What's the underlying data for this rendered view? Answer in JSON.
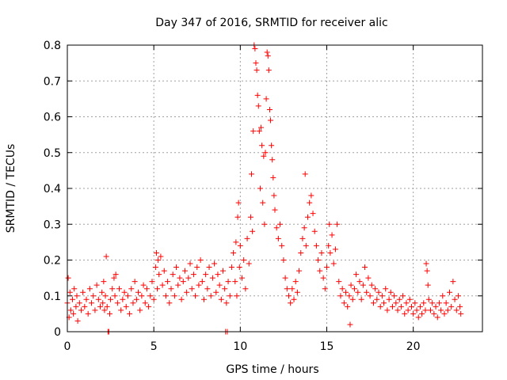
{
  "chart_data": {
    "type": "scatter",
    "title": "Day 347 of 2016, SRMTID for receiver alic",
    "xlabel": "GPS time / hours",
    "ylabel": "SRMTID / TECUs",
    "xlim": [
      0,
      24
    ],
    "ylim": [
      0,
      0.8
    ],
    "xticks": [
      "0",
      "5",
      "10",
      "15",
      "20"
    ],
    "yticks": [
      "0",
      "0.1",
      "0.2",
      "0.3",
      "0.4",
      "0.5",
      "0.6",
      "0.7",
      "0.8"
    ],
    "grid": true,
    "marker": "+",
    "color": "#ff0000",
    "series": [
      {
        "name": "SRMTID",
        "points": [
          [
            0.0,
            0.08
          ],
          [
            0.05,
            0.15
          ],
          [
            0.1,
            0.04
          ],
          [
            0.15,
            0.11
          ],
          [
            0.2,
            0.06
          ],
          [
            0.3,
            0.09
          ],
          [
            0.35,
            0.05
          ],
          [
            0.4,
            0.12
          ],
          [
            0.5,
            0.07
          ],
          [
            0.55,
            0.1
          ],
          [
            0.6,
            0.03
          ],
          [
            0.7,
            0.08
          ],
          [
            0.8,
            0.06
          ],
          [
            0.9,
            0.11
          ],
          [
            1.0,
            0.07
          ],
          [
            1.1,
            0.09
          ],
          [
            1.2,
            0.05
          ],
          [
            1.3,
            0.12
          ],
          [
            1.4,
            0.08
          ],
          [
            1.5,
            0.1
          ],
          [
            1.6,
            0.06
          ],
          [
            1.7,
            0.13
          ],
          [
            1.8,
            0.09
          ],
          [
            1.9,
            0.07
          ],
          [
            2.0,
            0.11
          ],
          [
            2.05,
            0.08
          ],
          [
            2.1,
            0.14
          ],
          [
            2.15,
            0.06
          ],
          [
            2.2,
            0.1
          ],
          [
            2.25,
            0.21
          ],
          [
            2.3,
            0.07
          ],
          [
            2.35,
            0.0
          ],
          [
            2.4,
            0.0
          ],
          [
            2.45,
            0.05
          ],
          [
            2.5,
            0.09
          ],
          [
            2.6,
            0.12
          ],
          [
            2.7,
            0.15
          ],
          [
            2.75,
            0.1
          ],
          [
            2.8,
            0.16
          ],
          [
            2.9,
            0.08
          ],
          [
            3.0,
            0.12
          ],
          [
            3.1,
            0.06
          ],
          [
            3.2,
            0.09
          ],
          [
            3.3,
            0.11
          ],
          [
            3.4,
            0.07
          ],
          [
            3.5,
            0.1
          ],
          [
            3.6,
            0.05
          ],
          [
            3.7,
            0.12
          ],
          [
            3.8,
            0.08
          ],
          [
            3.9,
            0.14
          ],
          [
            4.0,
            0.09
          ],
          [
            4.1,
            0.11
          ],
          [
            4.2,
            0.06
          ],
          [
            4.3,
            0.1
          ],
          [
            4.4,
            0.13
          ],
          [
            4.5,
            0.08
          ],
          [
            4.6,
            0.12
          ],
          [
            4.7,
            0.07
          ],
          [
            4.8,
            0.1
          ],
          [
            4.9,
            0.14
          ],
          [
            5.0,
            0.09
          ],
          [
            5.1,
            0.18
          ],
          [
            5.15,
            0.22
          ],
          [
            5.2,
            0.12
          ],
          [
            5.25,
            0.2
          ],
          [
            5.3,
            0.16
          ],
          [
            5.4,
            0.21
          ],
          [
            5.5,
            0.13
          ],
          [
            5.6,
            0.17
          ],
          [
            5.7,
            0.1
          ],
          [
            5.8,
            0.14
          ],
          [
            5.9,
            0.08
          ],
          [
            6.0,
            0.12
          ],
          [
            6.1,
            0.16
          ],
          [
            6.2,
            0.1
          ],
          [
            6.3,
            0.18
          ],
          [
            6.4,
            0.13
          ],
          [
            6.5,
            0.15
          ],
          [
            6.6,
            0.09
          ],
          [
            6.7,
            0.14
          ],
          [
            6.8,
            0.17
          ],
          [
            6.9,
            0.11
          ],
          [
            7.0,
            0.15
          ],
          [
            7.1,
            0.19
          ],
          [
            7.2,
            0.12
          ],
          [
            7.3,
            0.16
          ],
          [
            7.4,
            0.1
          ],
          [
            7.5,
            0.18
          ],
          [
            7.6,
            0.13
          ],
          [
            7.7,
            0.2
          ],
          [
            7.8,
            0.14
          ],
          [
            7.9,
            0.09
          ],
          [
            8.0,
            0.16
          ],
          [
            8.1,
            0.12
          ],
          [
            8.2,
            0.18
          ],
          [
            8.3,
            0.1
          ],
          [
            8.4,
            0.15
          ],
          [
            8.5,
            0.19
          ],
          [
            8.6,
            0.11
          ],
          [
            8.7,
            0.16
          ],
          [
            8.8,
            0.13
          ],
          [
            8.9,
            0.09
          ],
          [
            9.0,
            0.17
          ],
          [
            9.1,
            0.12
          ],
          [
            9.15,
            0.0
          ],
          [
            9.2,
            0.08
          ],
          [
            9.25,
            0.0
          ],
          [
            9.3,
            0.14
          ],
          [
            9.4,
            0.1
          ],
          [
            9.5,
            0.18
          ],
          [
            9.6,
            0.22
          ],
          [
            9.7,
            0.14
          ],
          [
            9.75,
            0.25
          ],
          [
            9.8,
            0.1
          ],
          [
            9.85,
            0.32
          ],
          [
            9.9,
            0.36
          ],
          [
            9.95,
            0.18
          ],
          [
            10.0,
            0.24
          ],
          [
            10.1,
            0.15
          ],
          [
            10.2,
            0.2
          ],
          [
            10.3,
            0.12
          ],
          [
            10.4,
            0.26
          ],
          [
            10.5,
            0.19
          ],
          [
            10.6,
            0.32
          ],
          [
            10.65,
            0.44
          ],
          [
            10.7,
            0.28
          ],
          [
            10.75,
            0.56
          ],
          [
            10.8,
            0.8
          ],
          [
            10.85,
            0.79
          ],
          [
            10.9,
            0.75
          ],
          [
            10.95,
            0.73
          ],
          [
            11.0,
            0.66
          ],
          [
            11.05,
            0.63
          ],
          [
            11.1,
            0.56
          ],
          [
            11.15,
            0.4
          ],
          [
            11.2,
            0.57
          ],
          [
            11.25,
            0.52
          ],
          [
            11.3,
            0.36
          ],
          [
            11.35,
            0.49
          ],
          [
            11.4,
            0.3
          ],
          [
            11.45,
            0.5
          ],
          [
            11.5,
            0.65
          ],
          [
            11.55,
            0.78
          ],
          [
            11.6,
            0.77
          ],
          [
            11.65,
            0.73
          ],
          [
            11.7,
            0.62
          ],
          [
            11.75,
            0.59
          ],
          [
            11.8,
            0.52
          ],
          [
            11.85,
            0.48
          ],
          [
            11.9,
            0.43
          ],
          [
            11.95,
            0.38
          ],
          [
            12.0,
            0.34
          ],
          [
            12.1,
            0.29
          ],
          [
            12.2,
            0.26
          ],
          [
            12.3,
            0.3
          ],
          [
            12.4,
            0.24
          ],
          [
            12.5,
            0.2
          ],
          [
            12.6,
            0.15
          ],
          [
            12.7,
            0.12
          ],
          [
            12.8,
            0.1
          ],
          [
            12.9,
            0.08
          ],
          [
            13.0,
            0.12
          ],
          [
            13.1,
            0.09
          ],
          [
            13.2,
            0.14
          ],
          [
            13.3,
            0.11
          ],
          [
            13.4,
            0.17
          ],
          [
            13.5,
            0.22
          ],
          [
            13.6,
            0.26
          ],
          [
            13.7,
            0.29
          ],
          [
            13.75,
            0.44
          ],
          [
            13.8,
            0.24
          ],
          [
            13.9,
            0.32
          ],
          [
            14.0,
            0.36
          ],
          [
            14.1,
            0.38
          ],
          [
            14.2,
            0.33
          ],
          [
            14.3,
            0.28
          ],
          [
            14.4,
            0.24
          ],
          [
            14.5,
            0.2
          ],
          [
            14.6,
            0.17
          ],
          [
            14.7,
            0.22
          ],
          [
            14.8,
            0.15
          ],
          [
            14.9,
            0.12
          ],
          [
            15.0,
            0.18
          ],
          [
            15.1,
            0.24
          ],
          [
            15.15,
            0.3
          ],
          [
            15.2,
            0.22
          ],
          [
            15.3,
            0.27
          ],
          [
            15.4,
            0.19
          ],
          [
            15.5,
            0.23
          ],
          [
            15.6,
            0.3
          ],
          [
            15.7,
            0.14
          ],
          [
            15.8,
            0.1
          ],
          [
            15.9,
            0.12
          ],
          [
            16.0,
            0.08
          ],
          [
            16.1,
            0.11
          ],
          [
            16.2,
            0.07
          ],
          [
            16.3,
            0.1
          ],
          [
            16.35,
            0.02
          ],
          [
            16.4,
            0.13
          ],
          [
            16.5,
            0.09
          ],
          [
            16.6,
            0.12
          ],
          [
            16.7,
            0.16
          ],
          [
            16.8,
            0.11
          ],
          [
            16.9,
            0.14
          ],
          [
            17.0,
            0.09
          ],
          [
            17.1,
            0.13
          ],
          [
            17.2,
            0.18
          ],
          [
            17.3,
            0.11
          ],
          [
            17.4,
            0.15
          ],
          [
            17.5,
            0.1
          ],
          [
            17.6,
            0.13
          ],
          [
            17.7,
            0.08
          ],
          [
            17.8,
            0.12
          ],
          [
            17.9,
            0.09
          ],
          [
            18.0,
            0.11
          ],
          [
            18.1,
            0.07
          ],
          [
            18.2,
            0.1
          ],
          [
            18.3,
            0.08
          ],
          [
            18.4,
            0.12
          ],
          [
            18.5,
            0.06
          ],
          [
            18.6,
            0.09
          ],
          [
            18.7,
            0.11
          ],
          [
            18.8,
            0.07
          ],
          [
            18.9,
            0.1
          ],
          [
            19.0,
            0.08
          ],
          [
            19.1,
            0.06
          ],
          [
            19.2,
            0.09
          ],
          [
            19.3,
            0.07
          ],
          [
            19.4,
            0.1
          ],
          [
            19.5,
            0.05
          ],
          [
            19.6,
            0.08
          ],
          [
            19.7,
            0.06
          ],
          [
            19.8,
            0.09
          ],
          [
            19.9,
            0.07
          ],
          [
            20.0,
            0.05
          ],
          [
            20.1,
            0.08
          ],
          [
            20.2,
            0.06
          ],
          [
            20.3,
            0.04
          ],
          [
            20.4,
            0.07
          ],
          [
            20.5,
            0.05
          ],
          [
            20.6,
            0.08
          ],
          [
            20.7,
            0.06
          ],
          [
            20.75,
            0.19
          ],
          [
            20.8,
            0.17
          ],
          [
            20.85,
            0.13
          ],
          [
            20.9,
            0.09
          ],
          [
            21.0,
            0.06
          ],
          [
            21.1,
            0.08
          ],
          [
            21.2,
            0.05
          ],
          [
            21.3,
            0.07
          ],
          [
            21.4,
            0.04
          ],
          [
            21.5,
            0.08
          ],
          [
            21.6,
            0.06
          ],
          [
            21.7,
            0.1
          ],
          [
            21.8,
            0.05
          ],
          [
            21.9,
            0.08
          ],
          [
            22.0,
            0.06
          ],
          [
            22.1,
            0.11
          ],
          [
            22.2,
            0.07
          ],
          [
            22.3,
            0.14
          ],
          [
            22.4,
            0.09
          ],
          [
            22.5,
            0.06
          ],
          [
            22.6,
            0.1
          ],
          [
            22.7,
            0.07
          ],
          [
            22.75,
            0.05
          ]
        ]
      }
    ]
  }
}
